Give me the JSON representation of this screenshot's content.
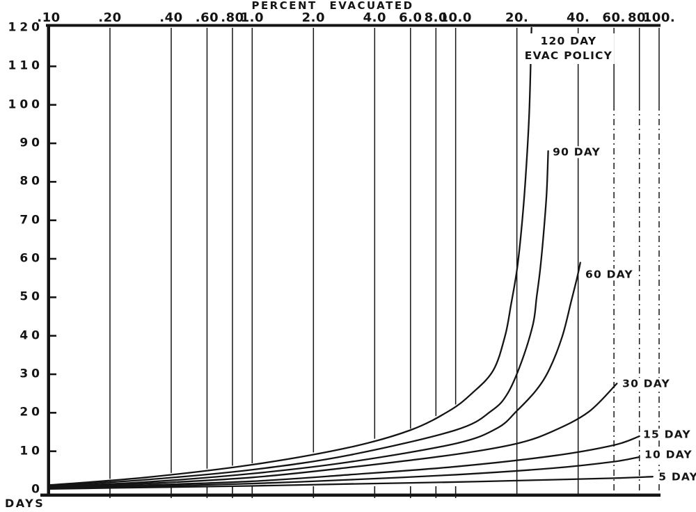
{
  "figure": {
    "background": "#ffffff",
    "ink": "#141414"
  },
  "chart_data": {
    "type": "line",
    "title": "",
    "xlabel": "PERCENT EVACUATED",
    "ylabel": "DAYS",
    "x_scale": "log",
    "x_range": [
      0.1,
      100
    ],
    "y_range": [
      0,
      120
    ],
    "grid": "vertical-only",
    "x_ticks": [
      {
        "value": 0.1,
        "label": ".10"
      },
      {
        "value": 0.2,
        "label": ".20"
      },
      {
        "value": 0.4,
        "label": ".40"
      },
      {
        "value": 0.6,
        "label": ".60"
      },
      {
        "value": 0.8,
        "label": ".80"
      },
      {
        "value": 1.0,
        "label": "1.0"
      },
      {
        "value": 2.0,
        "label": "2.0"
      },
      {
        "value": 4.0,
        "label": "4.0"
      },
      {
        "value": 6.0,
        "label": "6.0"
      },
      {
        "value": 8.0,
        "label": "8.0"
      },
      {
        "value": 10.0,
        "label": "10.0"
      },
      {
        "value": 20.0,
        "label": "20."
      },
      {
        "value": 40.0,
        "label": "40."
      },
      {
        "value": 60.0,
        "label": "60."
      },
      {
        "value": 80.0,
        "label": "80."
      },
      {
        "value": 100.0,
        "label": "100."
      }
    ],
    "y_ticks": [
      {
        "value": 0,
        "label": "0"
      },
      {
        "value": 10,
        "label": "10"
      },
      {
        "value": 20,
        "label": "20"
      },
      {
        "value": 30,
        "label": "30"
      },
      {
        "value": 40,
        "label": "40"
      },
      {
        "value": 50,
        "label": "50"
      },
      {
        "value": 60,
        "label": "60"
      },
      {
        "value": 70,
        "label": "70"
      },
      {
        "value": 80,
        "label": "80"
      },
      {
        "value": 90,
        "label": "90"
      },
      {
        "value": 100,
        "label": "100"
      },
      {
        "value": 110,
        "label": "110"
      },
      {
        "value": 120,
        "label": "120"
      }
    ],
    "series": [
      {
        "name": "5 DAY",
        "points": [
          [
            0.1,
            0.2
          ],
          [
            0.3,
            0.6
          ],
          [
            1,
            1.0
          ],
          [
            3,
            1.5
          ],
          [
            10,
            2.0
          ],
          [
            30,
            2.6
          ],
          [
            60,
            3.0
          ],
          [
            93,
            3.4
          ]
        ]
      },
      {
        "name": "10 DAY",
        "points": [
          [
            0.1,
            0.3
          ],
          [
            0.3,
            0.9
          ],
          [
            1,
            1.6
          ],
          [
            3,
            2.6
          ],
          [
            10,
            3.9
          ],
          [
            30,
            5.6
          ],
          [
            60,
            7.3
          ],
          [
            80,
            8.5
          ]
        ]
      },
      {
        "name": "15 DAY",
        "points": [
          [
            0.1,
            0.4
          ],
          [
            0.3,
            1.2
          ],
          [
            1,
            2.2
          ],
          [
            3,
            3.9
          ],
          [
            10,
            6.0
          ],
          [
            30,
            8.8
          ],
          [
            60,
            11.6
          ],
          [
            80,
            13.9
          ]
        ]
      },
      {
        "name": "30 DAY",
        "points": [
          [
            0.1,
            0.6
          ],
          [
            0.3,
            1.6
          ],
          [
            1,
            3.2
          ],
          [
            3,
            5.8
          ],
          [
            10,
            9.2
          ],
          [
            20,
            12.0
          ],
          [
            30,
            15.2
          ],
          [
            45,
            20.2
          ],
          [
            62,
            27.6
          ]
        ]
      },
      {
        "name": "60 DAY",
        "points": [
          [
            0.1,
            0.8
          ],
          [
            0.3,
            2.0
          ],
          [
            1,
            4.2
          ],
          [
            3,
            7.2
          ],
          [
            10,
            12.0
          ],
          [
            16,
            16.0
          ],
          [
            20,
            20.5
          ],
          [
            25,
            26.0
          ],
          [
            29,
            31.5
          ],
          [
            33.5,
            40.0
          ],
          [
            37,
            49.0
          ],
          [
            39.5,
            55.0
          ],
          [
            41,
            59.0
          ]
        ]
      },
      {
        "name": "90 DAY",
        "points": [
          [
            0.1,
            1.0
          ],
          [
            0.3,
            2.6
          ],
          [
            1,
            5.2
          ],
          [
            3,
            9.0
          ],
          [
            10,
            15.5
          ],
          [
            15,
            20.5
          ],
          [
            18,
            25.0
          ],
          [
            21,
            33.0
          ],
          [
            24,
            43.0
          ],
          [
            25,
            50.0
          ],
          [
            26,
            57.0
          ],
          [
            27,
            66.0
          ],
          [
            28,
            77.0
          ],
          [
            28.5,
            88.0
          ]
        ]
      },
      {
        "name": "120 DAY",
        "points": [
          [
            0.1,
            1.2
          ],
          [
            0.3,
            3.2
          ],
          [
            1,
            6.5
          ],
          [
            3,
            11.0
          ],
          [
            6,
            15.5
          ],
          [
            9.3,
            20.5
          ],
          [
            12,
            25.0
          ],
          [
            15.3,
            31.0
          ],
          [
            17.5,
            40.0
          ],
          [
            18.7,
            48.0
          ],
          [
            20,
            57.0
          ],
          [
            21,
            67.0
          ],
          [
            22,
            80.0
          ],
          [
            23,
            98.0
          ],
          [
            23.6,
            120.0
          ]
        ]
      }
    ],
    "annotations": [
      {
        "lines": [
          "120 DAY",
          "EVAC POLICY"
        ],
        "percent": 35.9,
        "days": 116.8,
        "align": "center"
      },
      {
        "lines": [
          "90 DAY"
        ],
        "percent": 29.3,
        "days": 87.7,
        "align": "left"
      },
      {
        "lines": [
          "60 DAY"
        ],
        "percent": 42.4,
        "days": 55.9,
        "align": "left"
      },
      {
        "lines": [
          "30 DAY"
        ],
        "percent": 64.4,
        "days": 27.5,
        "align": "left"
      },
      {
        "lines": [
          "15 DAY"
        ],
        "percent": 81.5,
        "days": 14.3,
        "align": "left"
      },
      {
        "lines": [
          "10 DAY"
        ],
        "percent": 82.8,
        "days": 9.0,
        "align": "left"
      },
      {
        "lines": [
          "5 DAY"
        ],
        "percent": 97.1,
        "days": 3.3,
        "align": "left"
      }
    ]
  }
}
